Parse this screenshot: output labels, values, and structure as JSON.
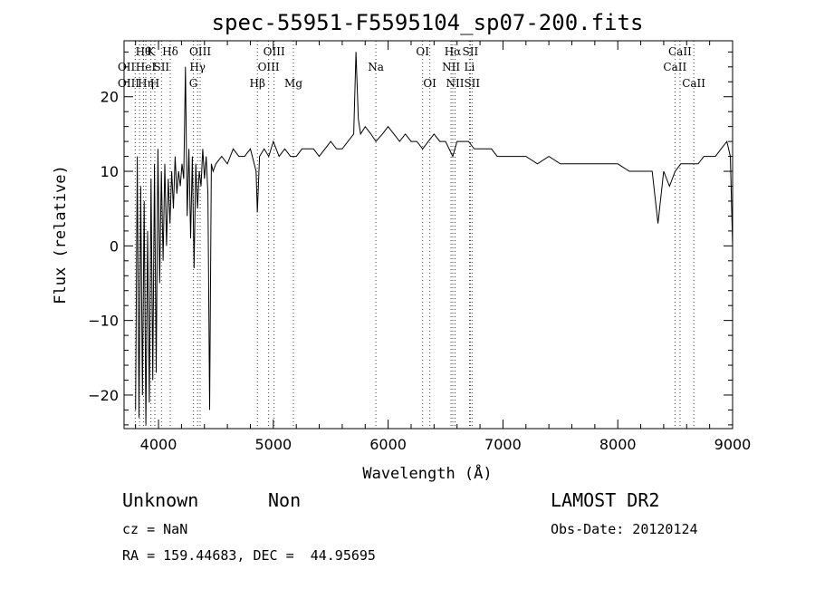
{
  "chart_data": {
    "type": "line",
    "title": "spec-55951-F5595104_sp07-200.fits",
    "xlabel": "Wavelength (Å)",
    "ylabel": "Flux (relative)",
    "xlim": [
      3700,
      9000
    ],
    "ylim": [
      -24.5,
      27.5
    ],
    "x_ticks": [
      4000,
      5000,
      6000,
      7000,
      8000,
      9000
    ],
    "y_ticks": [
      -20,
      -10,
      0,
      10,
      20
    ],
    "grid": false,
    "line_color": "#000000",
    "marker_color": "#cc0000",
    "series": [
      {
        "x": [
          3800,
          3815,
          3830,
          3845,
          3860,
          3875,
          3890,
          3905,
          3920,
          3935,
          3950,
          3965,
          3980,
          3995,
          4010,
          4025,
          4040,
          4055,
          4070,
          4085,
          4100,
          4115,
          4130,
          4145,
          4160,
          4175,
          4190,
          4205,
          4220,
          4235,
          4250,
          4265,
          4280,
          4295,
          4310,
          4325,
          4340,
          4355,
          4370,
          4385,
          4400,
          4415,
          4430,
          4445,
          4460,
          4475,
          4500,
          4550,
          4600,
          4650,
          4700,
          4750,
          4800,
          4850,
          4861,
          4880,
          4920,
          4960,
          5000,
          5050,
          5100,
          5150,
          5200,
          5250,
          5300,
          5350,
          5400,
          5450,
          5500,
          5550,
          5600,
          5650,
          5700,
          5720,
          5740,
          5760,
          5800,
          5850,
          5893,
          5950,
          6000,
          6050,
          6100,
          6150,
          6200,
          6250,
          6300,
          6350,
          6400,
          6450,
          6500,
          6563,
          6600,
          6650,
          6700,
          6750,
          6800,
          6850,
          6900,
          6950,
          7000,
          7100,
          7200,
          7300,
          7400,
          7500,
          7600,
          7700,
          7800,
          7900,
          8000,
          8100,
          8200,
          8300,
          8350,
          8400,
          8450,
          8500,
          8550,
          8600,
          8650,
          8700,
          8750,
          8800,
          8850,
          8900,
          8950,
          8980,
          9000
        ],
        "y": [
          -22,
          12,
          -23,
          8,
          -20,
          6,
          -24,
          2,
          -21,
          9,
          -18,
          11,
          -17,
          13,
          -5,
          10,
          -2,
          11,
          0,
          9,
          3,
          10,
          5,
          12,
          7,
          10,
          8,
          11,
          9,
          24,
          4,
          13,
          1,
          12,
          -3,
          11,
          5,
          10,
          8,
          13,
          9,
          12,
          7,
          -22,
          11,
          10,
          11,
          12,
          11,
          13,
          12,
          12,
          13,
          10,
          4.5,
          12,
          13,
          12,
          14,
          12,
          13,
          12,
          12,
          13,
          13,
          13,
          12,
          13,
          14,
          13,
          13,
          14,
          15,
          26,
          17,
          15,
          16,
          15,
          14,
          15,
          16,
          15,
          14,
          15,
          14,
          14,
          13,
          14,
          15,
          14,
          14,
          12,
          14,
          14,
          14,
          13,
          13,
          13,
          13,
          12,
          12,
          12,
          12,
          11,
          12,
          11,
          11,
          11,
          11,
          11,
          11,
          10,
          10,
          10,
          3,
          10,
          8,
          10,
          11,
          11,
          11,
          11,
          12,
          12,
          12,
          13,
          14,
          12,
          0
        ]
      }
    ],
    "line_markers": [
      {
        "x": 3797,
        "label": "OII",
        "row": 1,
        "anchor": "end"
      },
      {
        "x": 3835,
        "label": "OIII",
        "row": 2,
        "anchor": "end"
      },
      {
        "x": 3869,
        "label": "Hθ",
        "row": 0
      },
      {
        "x": 3889,
        "label": "HeI",
        "row": 1
      },
      {
        "x": 3889,
        "label": "Hη",
        "row": 2
      },
      {
        "x": 3934,
        "label": "K",
        "row": 0
      },
      {
        "x": 3968,
        "label": "H",
        "row": 2
      },
      {
        "x": 4026,
        "label": "SII",
        "row": 1
      },
      {
        "x": 4102,
        "label": "Hδ",
        "row": 0
      },
      {
        "x": 4340,
        "label": "Hγ",
        "row": 1
      },
      {
        "x": 4304,
        "label": "G",
        "row": 2
      },
      {
        "x": 4363,
        "label": "OIII",
        "row": 0
      },
      {
        "x": 4861,
        "label": "Hβ",
        "row": 2
      },
      {
        "x": 4959,
        "label": "OIII",
        "row": 1
      },
      {
        "x": 5007,
        "label": "OIII",
        "row": 0
      },
      {
        "x": 5175,
        "label": "Mg",
        "row": 2
      },
      {
        "x": 5893,
        "label": "Na",
        "row": 1
      },
      {
        "x": 6300,
        "label": "OI",
        "row": 0
      },
      {
        "x": 6363,
        "label": "OI",
        "row": 2
      },
      {
        "x": 6548,
        "label": "NII",
        "row": 1
      },
      {
        "x": 6563,
        "label": "Hα",
        "row": 0
      },
      {
        "x": 6583,
        "label": "NII",
        "row": 2
      },
      {
        "x": 6708,
        "label": "Li",
        "row": 1
      },
      {
        "x": 6716,
        "label": "SII",
        "row": 0
      },
      {
        "x": 6731,
        "label": "SII",
        "row": 2
      },
      {
        "x": 8498,
        "label": "CaII",
        "row": 1
      },
      {
        "x": 8542,
        "label": "CaII",
        "row": 0
      },
      {
        "x": 8662,
        "label": "CaII",
        "row": 2
      }
    ]
  },
  "info": {
    "class_label": "Unknown",
    "subclass_label": "Non",
    "survey": "LAMOST DR2",
    "cz_text": "cz = NaN",
    "obs_date_text": "Obs-Date: 20120124",
    "coords_text": "RA = 159.44683, DEC =  44.95695"
  }
}
